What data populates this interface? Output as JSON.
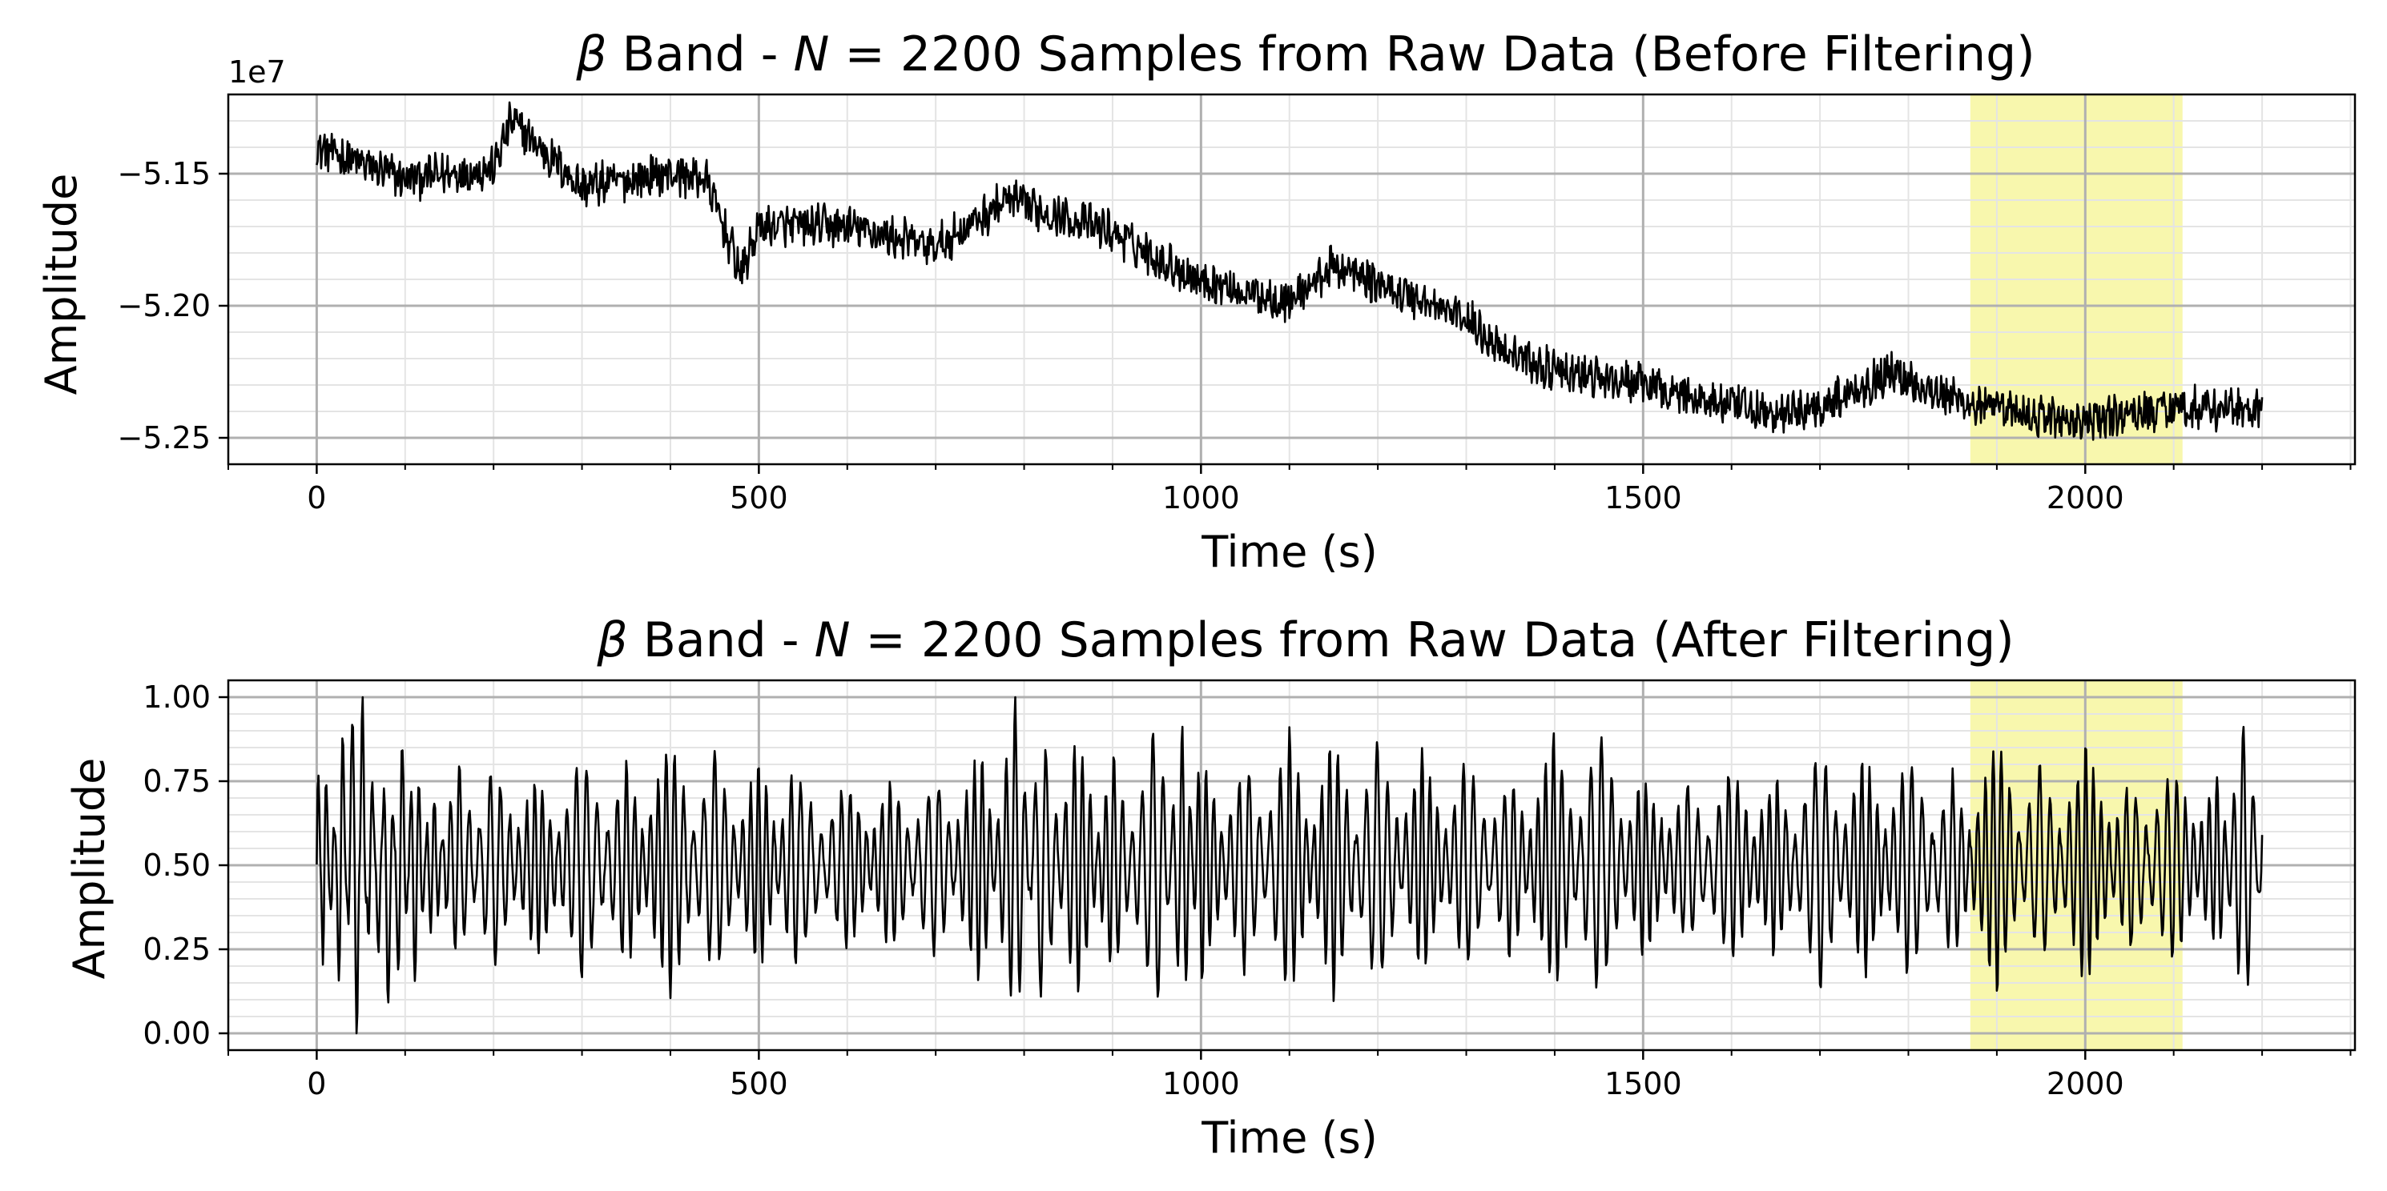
{
  "chart_data": [
    {
      "type": "line",
      "title": "β Band - N = 2200 Samples from Raw Data (Before Filtering)",
      "title_parts": {
        "beta": "β",
        "band": " Band - ",
        "n": "N",
        "rest": " = 2200 Samples from Raw Data (Before Filtering)"
      },
      "xlabel": "Time (s)",
      "ylabel": "Amplitude",
      "offset_label": "1e7",
      "xlim": [
        -100,
        2305
      ],
      "ylim": [
        -52.6,
        -51.2
      ],
      "unit_scale": 10000000.0,
      "xticks": [
        0,
        500,
        1000,
        1500,
        2000
      ],
      "xtick_labels": [
        "0",
        "500",
        "1000",
        "1500",
        "2000"
      ],
      "yticks": [
        -51.5,
        -52.0,
        -52.5
      ],
      "ytick_labels": [
        "−5.15",
        "−5.20",
        "−5.25"
      ],
      "highlight": {
        "x0": 1870,
        "x1": 2110,
        "color": "#f2f06a"
      },
      "grid": true,
      "series": [
        {
          "name": "raw",
          "x": [
            0,
            40,
            100,
            200,
            220,
            300,
            400,
            440,
            460,
            480,
            500,
            600,
            700,
            780,
            800,
            900,
            950,
            1000,
            1050,
            1100,
            1150,
            1200,
            1250,
            1300,
            1350,
            1400,
            1500,
            1600,
            1650,
            1700,
            1780,
            1800,
            1850,
            1900,
            2000,
            2100,
            2200
          ],
          "values": [
            -51.4,
            -51.45,
            -51.52,
            -51.48,
            -51.3,
            -51.55,
            -51.5,
            -51.52,
            -51.7,
            -51.88,
            -51.7,
            -51.7,
            -51.78,
            -51.6,
            -51.62,
            -51.72,
            -51.82,
            -51.9,
            -51.95,
            -51.98,
            -51.85,
            -51.92,
            -51.98,
            -52.05,
            -52.18,
            -52.25,
            -52.3,
            -52.38,
            -52.42,
            -52.38,
            -52.25,
            -52.28,
            -52.35,
            -52.4,
            -52.44,
            -52.38,
            -52.4
          ]
        }
      ]
    },
    {
      "type": "line",
      "title": "β Band - N = 2200 Samples from Raw Data (After Filtering)",
      "title_parts": {
        "beta": "β",
        "band": " Band - ",
        "n": "N",
        "rest": " = 2200 Samples from Raw Data (After Filtering)"
      },
      "xlabel": "Time (s)",
      "ylabel": "Amplitude",
      "xlim": [
        -100,
        2305
      ],
      "ylim": [
        -0.05,
        1.05
      ],
      "xticks": [
        0,
        500,
        1000,
        1500,
        2000
      ],
      "xtick_labels": [
        "0",
        "500",
        "1000",
        "1500",
        "2000"
      ],
      "yticks": [
        0.0,
        0.25,
        0.5,
        0.75,
        1.0
      ],
      "ytick_labels": [
        "0.00",
        "0.25",
        "0.50",
        "0.75",
        "1.00"
      ],
      "highlight": {
        "x0": 1870,
        "x1": 2110,
        "color": "#f2f06a"
      },
      "grid": true,
      "series": [
        {
          "name": "filtered",
          "x": [
            0,
            8,
            18,
            28,
            38,
            45,
            52,
            60,
            70,
            80,
            95,
            110,
            130,
            160,
            200,
            250,
            300,
            350,
            400,
            450,
            500,
            540,
            600,
            650,
            700,
            750,
            790,
            820,
            860,
            900,
            950,
            980,
            1000,
            1050,
            1100,
            1150,
            1200,
            1250,
            1300,
            1350,
            1400,
            1450,
            1500,
            1550,
            1600,
            1650,
            1700,
            1750,
            1800,
            1850,
            1900,
            1950,
            2000,
            2050,
            2100,
            2150,
            2180,
            2200
          ],
          "values": [
            0.14,
            0.8,
            0.35,
            0.93,
            0.22,
            0.01,
            1.0,
            0.18,
            0.7,
            0.12,
            0.86,
            0.2,
            0.66,
            0.28,
            0.72,
            0.3,
            0.76,
            0.27,
            0.82,
            0.24,
            0.74,
            0.28,
            0.68,
            0.32,
            0.7,
            0.22,
            0.91,
            0.16,
            0.84,
            0.23,
            0.86,
            0.14,
            0.78,
            0.26,
            0.82,
            0.18,
            0.8,
            0.24,
            0.74,
            0.3,
            0.82,
            0.18,
            0.7,
            0.33,
            0.72,
            0.3,
            0.78,
            0.24,
            0.76,
            0.3,
            0.8,
            0.27,
            0.78,
            0.32,
            0.72,
            0.3,
            0.86,
            0.4
          ]
        }
      ]
    }
  ]
}
